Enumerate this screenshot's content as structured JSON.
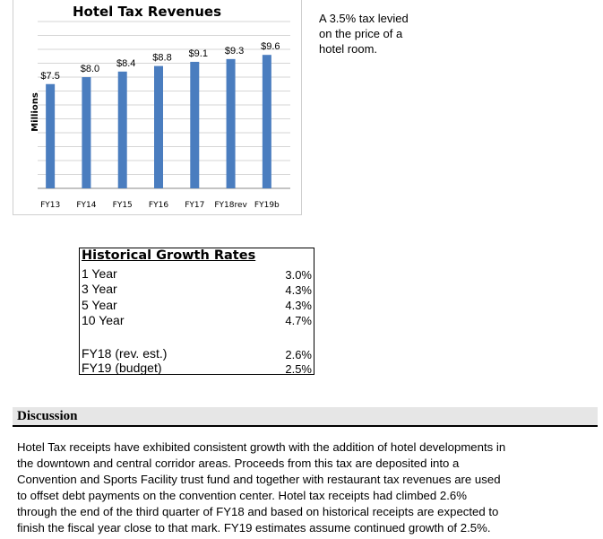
{
  "chart_data": {
    "type": "bar",
    "title": "Hotel Tax Revenues",
    "ylabel": "Millions",
    "xlabel": "",
    "categories": [
      "FY13",
      "FY14",
      "FY15",
      "FY16",
      "FY17",
      "FY18rev",
      "FY19b"
    ],
    "values": [
      7.5,
      8.0,
      8.4,
      8.8,
      9.1,
      9.3,
      9.6
    ],
    "data_labels": [
      "$7.5",
      "$8.0",
      "$8.4",
      "$8.8",
      "$9.1",
      "$9.3",
      "$9.6"
    ],
    "ylim": [
      0,
      12
    ],
    "grid": true,
    "bar_color": "#4a7dbf"
  },
  "note": {
    "line1": "A 3.5% tax levied",
    "line2": "on the price of a",
    "line3": "hotel room."
  },
  "growth": {
    "title": "Historical Growth Rates",
    "rows": [
      {
        "label": "1 Year",
        "value": "3.0%"
      },
      {
        "label": "3 Year",
        "value": "4.3%"
      },
      {
        "label": "5 Year",
        "value": "4.3%"
      },
      {
        "label": "10 Year",
        "value": "4.7%"
      },
      {
        "label": "FY18 (rev. est.)",
        "value": "2.6%"
      },
      {
        "label": "FY19 (budget)",
        "value": "2.5%"
      }
    ]
  },
  "discussion": {
    "title": "Discussion",
    "lines": [
      "Hotel Tax receipts have exhibited consistent growth with the addition of hotel developments in",
      "the downtown and central corridor areas. Proceeds from this tax are deposited into a",
      "Convention and Sports Facility trust fund and together with restaurant tax revenues are used",
      "to offset debt payments on the convention center.  Hotel tax receipts had climbed 2.6%",
      "through the end of the third quarter of FY18 and based on historical receipts are expected to",
      "finish the fiscal year close to that mark.  FY19 estimates assume continued growth of 2.5%."
    ]
  }
}
